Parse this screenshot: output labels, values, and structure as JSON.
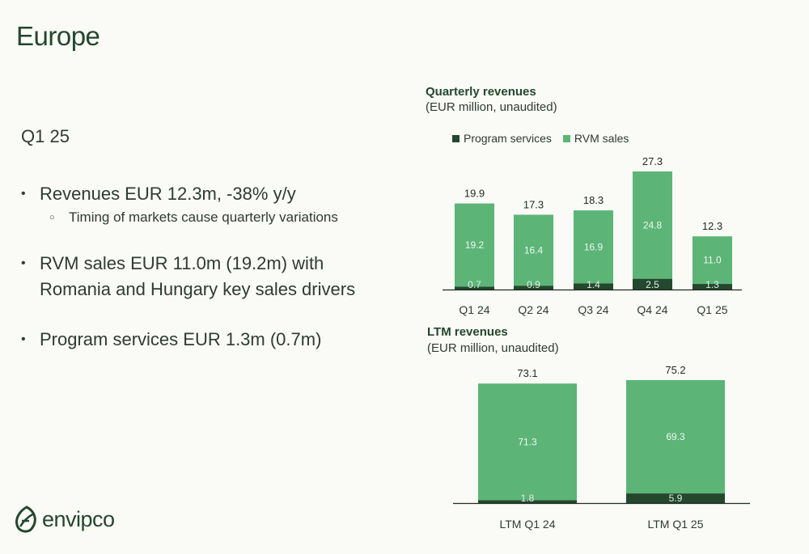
{
  "page": {
    "title": "Europe",
    "quarter": "Q1 25",
    "bullets": [
      {
        "text": "Revenues EUR 12.3m, -38% y/y",
        "sub": [
          "Timing of markets cause quarterly variations"
        ]
      },
      {
        "text": "RVM sales EUR 11.0m (19.2m) with Romania and Hungary key sales drivers",
        "sub": []
      },
      {
        "text": "Program services EUR 1.3m (0.7m)",
        "sub": []
      }
    ]
  },
  "colors": {
    "program_services": "#24472d",
    "rvm_sales": "#5cb577",
    "brand": "#24472d"
  },
  "legend": {
    "program_services": "Program services",
    "rvm_sales": "RVM sales"
  },
  "logo": {
    "text": "envipco",
    "icon": "envipco-leaf-icon"
  },
  "chart_data": [
    {
      "type": "bar",
      "stacked": true,
      "title": "Quarterly revenues",
      "subtitle": "(EUR million, unaudited)",
      "categories": [
        "Q1 24",
        "Q2 24",
        "Q3 24",
        "Q4 24",
        "Q1 25"
      ],
      "series": [
        {
          "name": "Program services",
          "values": [
            0.7,
            0.9,
            1.4,
            2.5,
            1.3
          ]
        },
        {
          "name": "RVM sales",
          "values": [
            19.2,
            16.4,
            16.9,
            24.8,
            11.0
          ]
        }
      ],
      "totals": [
        "19.9",
        "17.3",
        "18.3",
        "27.3",
        "12.3"
      ],
      "segment_labels": {
        "Program services": [
          "0.7",
          "0.9",
          "1.4",
          "2.5",
          "1.3"
        ],
        "RVM sales": [
          "19.2",
          "16.4",
          "16.9",
          "24.8",
          "11.0"
        ]
      },
      "ylim": [
        0,
        27.3
      ],
      "legend_position": "top",
      "grid": false
    },
    {
      "type": "bar",
      "stacked": true,
      "title": "LTM revenues",
      "subtitle": "(EUR million, unaudited)",
      "categories": [
        "LTM Q1 24",
        "LTM Q1 25"
      ],
      "series": [
        {
          "name": "Program services",
          "values": [
            1.8,
            5.9
          ]
        },
        {
          "name": "RVM sales",
          "values": [
            71.3,
            69.3
          ]
        }
      ],
      "totals": [
        "73.1",
        "75.2"
      ],
      "segment_labels": {
        "Program services": [
          "1.8",
          "5.9"
        ],
        "RVM sales": [
          "71.3",
          "69.3"
        ]
      },
      "ylim": [
        0,
        75.2
      ],
      "grid": false
    }
  ]
}
